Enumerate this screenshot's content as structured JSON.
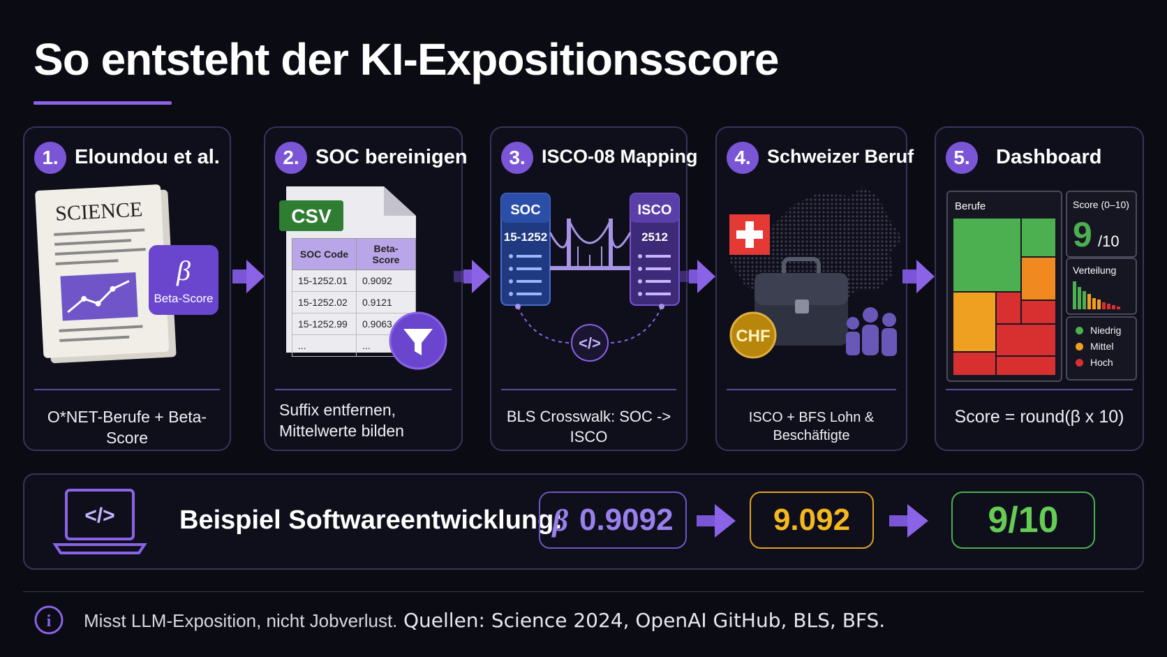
{
  "title": "So entsteht der KI-Expositionsscore",
  "colors": {
    "accent": "#7a55d6",
    "green": "#4caf50",
    "orange": "#f0a020",
    "red": "#d83030"
  },
  "steps": [
    {
      "num": "1.",
      "title": "Eloundou et al.",
      "caption": "O*NET-Berufe + Beta-Score",
      "paper_label": "SCIENCE",
      "beta_symbol": "β",
      "beta_label": "Beta-Score"
    },
    {
      "num": "2.",
      "title": "SOC bereinigen",
      "caption_line1": "Suffix entfernen,",
      "caption_line2": "Mittelwerte bilden",
      "file_tag": "CSV",
      "table": {
        "headers": [
          "SOC Code",
          "Beta-Score"
        ],
        "rows": [
          [
            "15-1252.01",
            "0.9092"
          ],
          [
            "15-1252.02",
            "0.9121"
          ],
          [
            "15-1252.99",
            "0.9063"
          ],
          [
            "...",
            "..."
          ]
        ]
      }
    },
    {
      "num": "3.",
      "title": "ISCO-08 Mapping",
      "caption": "BLS Crosswalk: SOC -> ISCO",
      "left_label": "SOC",
      "left_code": "15-1252",
      "right_label": "ISCO",
      "right_code": "2512",
      "code_symbol": "</>"
    },
    {
      "num": "4.",
      "title": "Schweizer Beruf",
      "caption": "ISCO + BFS Lohn & Beschäftigte",
      "coin_label": "CHF"
    },
    {
      "num": "5.",
      "title": "Dashboard",
      "caption": "Score = round(β x 10)",
      "treemap_label": "Berufe",
      "score_label": "Score (0–10)",
      "score_value": "9",
      "score_suffix": "/10",
      "dist_label": "Verteilung",
      "legend": [
        "Niedrig",
        "Mittel",
        "Hoch"
      ]
    }
  ],
  "example": {
    "label": "Beispiel Softwareentwicklung:",
    "laptop_symbol": "</>",
    "beta_symbol": "β",
    "beta_value": "0.9092",
    "scaled_value": "9.092",
    "result": "9/10"
  },
  "footer": {
    "note": "Misst LLM-Exposition, nicht Jobverlust.",
    "sources": "Quellen: Science 2024, OpenAI GitHub, BLS, BFS.",
    "info_symbol": "i"
  }
}
